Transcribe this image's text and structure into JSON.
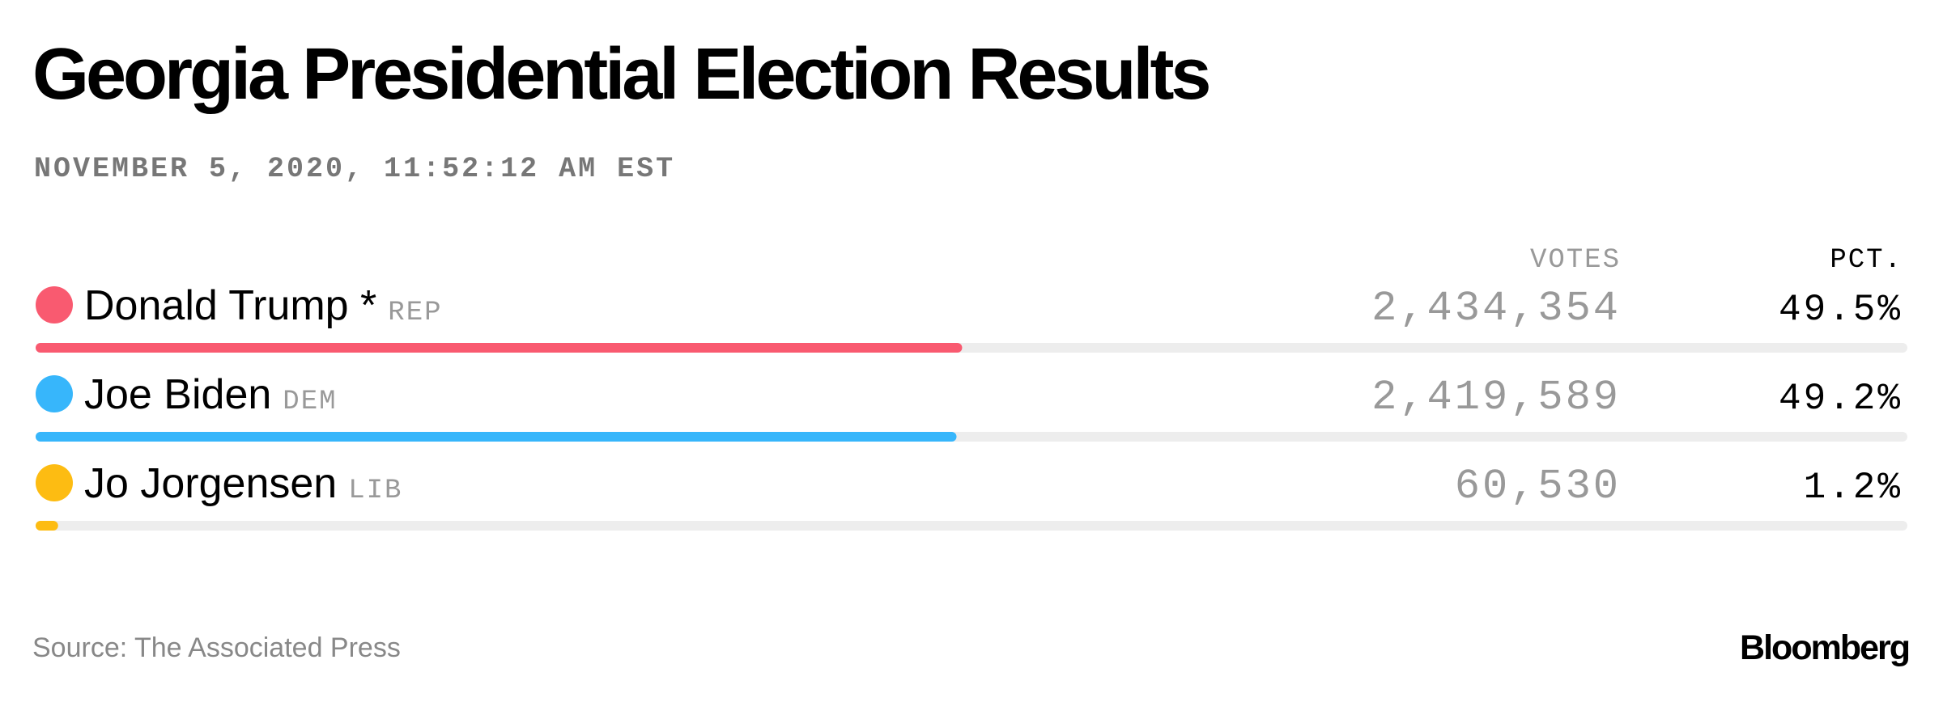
{
  "chart_data": {
    "type": "bar",
    "title": "Georgia Presidential Election Results",
    "subtitle": "NOVEMBER 5, 2020, 11:52:12 AM EST",
    "votes_header": "VOTES",
    "pct_header": "PCT.",
    "categories": [
      "Donald Trump *",
      "Joe Biden",
      "Jo Jorgensen"
    ],
    "parties": [
      "REP",
      "DEM",
      "LIB"
    ],
    "colors": [
      "#f95a70",
      "#37b6fb",
      "#fdbc12"
    ],
    "values": [
      49.5,
      49.2,
      1.2
    ],
    "value_labels": [
      "49.5%",
      "49.2%",
      "1.2%"
    ],
    "votes": {
      "values": [
        2434354,
        2419589,
        60530
      ],
      "value_labels": [
        "2,434,354",
        "2,419,589",
        "60,530"
      ]
    },
    "xlim": [
      0,
      100
    ],
    "source": "Source: The Associated Press",
    "brand": "Bloomberg"
  }
}
